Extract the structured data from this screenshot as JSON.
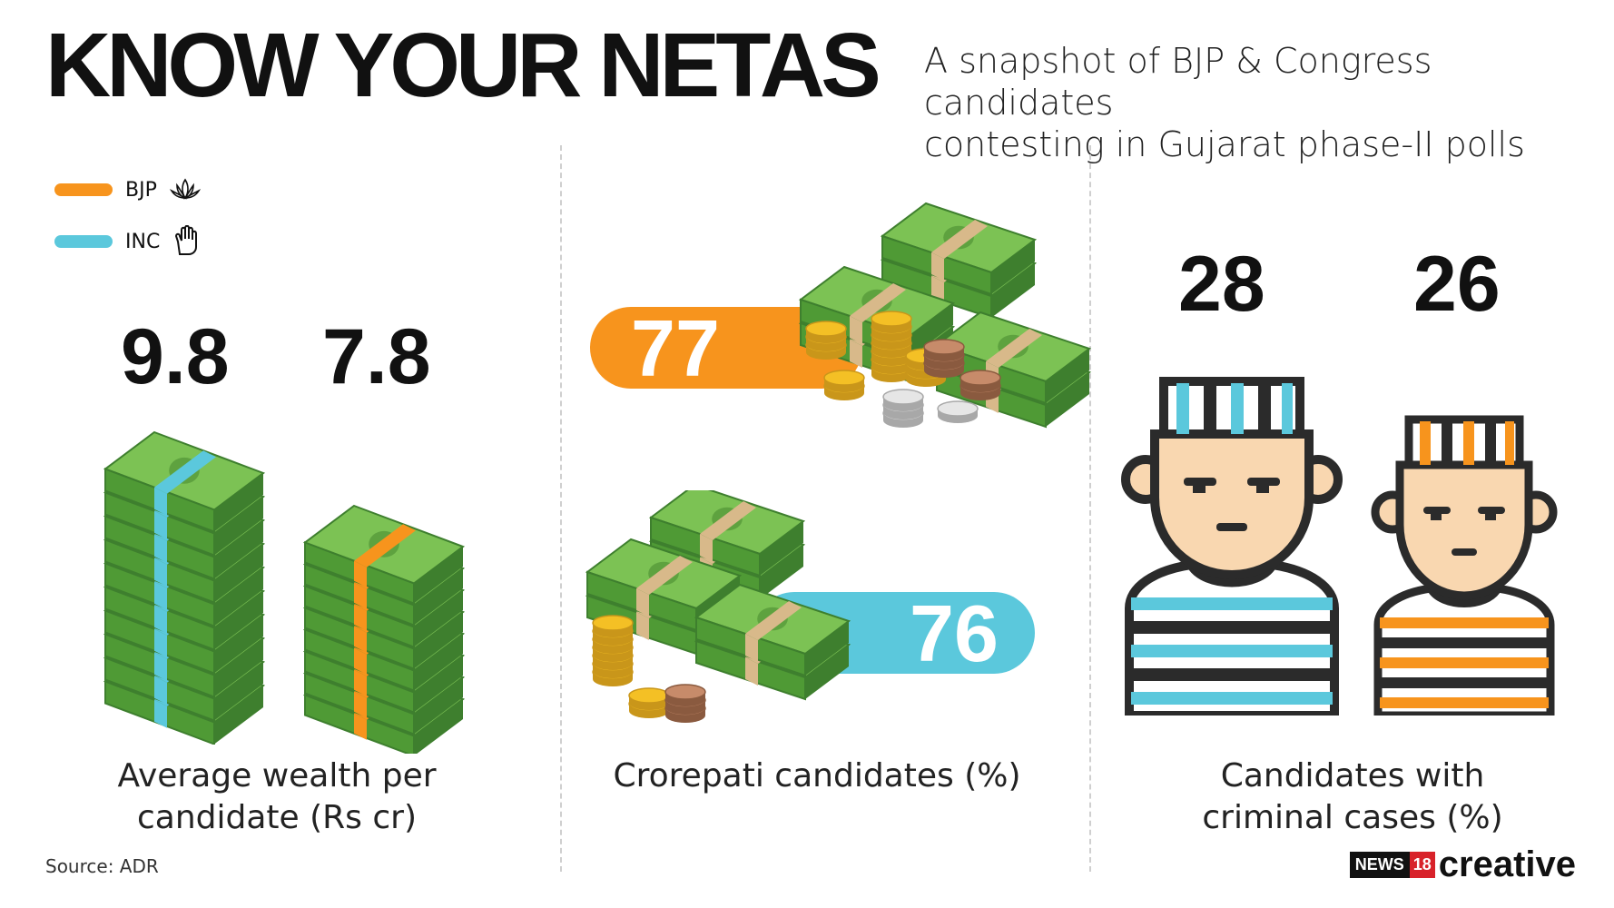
{
  "title": "KNOW YOUR NETAS",
  "subtitle_line1": "A snapshot of BJP & Congress candidates",
  "subtitle_line2": "contesting in Gujarat phase-II polls",
  "legend": [
    {
      "label": "BJP",
      "color": "#f7941d",
      "icon": "lotus-icon"
    },
    {
      "label": "INC",
      "color": "#5bc8dc",
      "icon": "hand-icon"
    }
  ],
  "wealth": {
    "bjp_value": "9.8",
    "inc_value": "7.8",
    "caption_line1": "Average wealth per",
    "caption_line2": "candidate (Rs cr)"
  },
  "crorepati": {
    "bjp_value": "77",
    "inc_value": "76",
    "caption": "Crorepati candidates (%)"
  },
  "criminal": {
    "bjp_value": "28",
    "inc_value": "26",
    "caption_line1": "Candidates with",
    "caption_line2": "criminal cases (%)"
  },
  "source": "Source: ADR",
  "brand": {
    "news": "NEWS",
    "num": "18",
    "creative": "creative"
  },
  "colors": {
    "money_green": "#6ab04c",
    "money_dark": "#3e7f2e",
    "coin_gold": "#f4c025",
    "bjp_orange": "#f7941d",
    "inc_blue": "#5bc8dc"
  }
}
